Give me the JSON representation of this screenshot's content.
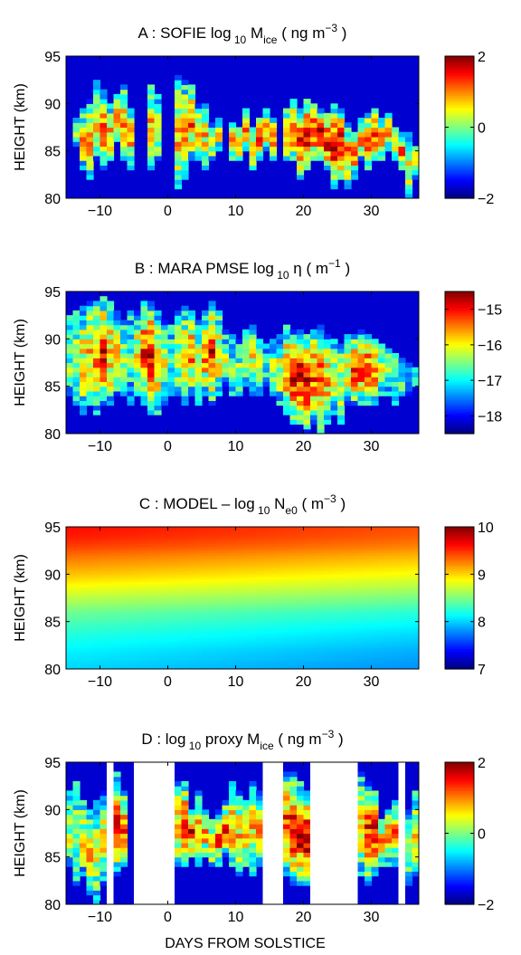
{
  "figure": {
    "xlabel": "DAYS FROM SOLSTICE"
  },
  "chart_data": [
    {
      "type": "heatmap",
      "panel_id": "A",
      "title": "A : SOFIE log 10 M ice ( ng m −3 )",
      "title_parts": {
        "prefix": "A : SOFIE log",
        "sub1": "10",
        "mid": " M",
        "sub2": "ice",
        "unit_open": "   ( ng m",
        "sup": "−3",
        "unit_close": " )"
      },
      "ylabel": "HEIGHT (km)",
      "xlim": [
        -15,
        37
      ],
      "ylim": [
        80,
        95
      ],
      "xticks": [
        -10,
        0,
        10,
        20,
        30
      ],
      "xtick_labels": [
        "−10",
        "0",
        "10",
        "20",
        "30"
      ],
      "yticks": [
        80,
        85,
        90,
        95
      ],
      "ytick_labels": [
        "80",
        "85",
        "90",
        "95"
      ],
      "clim": [
        -2,
        2
      ],
      "cbar_ticks": [
        2,
        0,
        -2
      ],
      "cbar_tick_labels": [
        "2",
        "0",
        "−2"
      ],
      "nan_color": "",
      "columns": [
        {
          "day": -14,
          "base": 85.5,
          "top": 88.5,
          "peak": 0.5
        },
        {
          "day": -13,
          "base": 83,
          "top": 89.5,
          "peak": 0.6
        },
        {
          "day": -12,
          "base": 82,
          "top": 90.5,
          "peak": 0.9
        },
        {
          "day": -11,
          "base": 84,
          "top": 92.5,
          "peak": 0.8
        },
        {
          "day": -10,
          "base": 83,
          "top": 91.5,
          "peak": 1.0
        },
        {
          "day": -9,
          "base": 84,
          "top": 90,
          "peak": 0.9
        },
        {
          "day": -8,
          "base": 86,
          "top": 91,
          "peak": 0.7
        },
        {
          "day": -7,
          "base": 84,
          "top": 92,
          "peak": 0.8
        },
        {
          "day": -6,
          "base": 83,
          "top": 89.5,
          "peak": 0.8
        },
        {
          "day": -3,
          "base": 83,
          "top": 92,
          "peak": 0.8
        },
        {
          "day": -2,
          "base": 84,
          "top": 91,
          "peak": 0.7
        },
        {
          "day": 1,
          "base": 81,
          "top": 93,
          "peak": 0.8
        },
        {
          "day": 2,
          "base": 82,
          "top": 92.5,
          "peak": 1.0
        },
        {
          "day": 3,
          "base": 84,
          "top": 92,
          "peak": 1.0
        },
        {
          "day": 4,
          "base": 84,
          "top": 90,
          "peak": 0.9
        },
        {
          "day": 5,
          "base": 83,
          "top": 90,
          "peak": 0.6
        },
        {
          "day": 6,
          "base": 84,
          "top": 88,
          "peak": 0.5
        },
        {
          "day": 7,
          "base": 85,
          "top": 88.5,
          "peak": 0.4
        },
        {
          "day": 9,
          "base": 84,
          "top": 88,
          "peak": 0.6
        },
        {
          "day": 10,
          "base": 84,
          "top": 87.5,
          "peak": 1.0
        },
        {
          "day": 11,
          "base": 85,
          "top": 89.5,
          "peak": 1.1
        },
        {
          "day": 12,
          "base": 83,
          "top": 87.5,
          "peak": 1.2
        },
        {
          "day": 13,
          "base": 84,
          "top": 88.5,
          "peak": 1.2
        },
        {
          "day": 14,
          "base": 85,
          "top": 89.5,
          "peak": 1.1
        },
        {
          "day": 15,
          "base": 84,
          "top": 88.5,
          "peak": 0.9
        },
        {
          "day": 17,
          "base": 84,
          "top": 89.5,
          "peak": 1.0
        },
        {
          "day": 18,
          "base": 84,
          "top": 90.5,
          "peak": 1.1
        },
        {
          "day": 19,
          "base": 82,
          "top": 89.5,
          "peak": 1.3
        },
        {
          "day": 20,
          "base": 83,
          "top": 90.5,
          "peak": 1.5
        },
        {
          "day": 21,
          "base": 84,
          "top": 90,
          "peak": 1.6
        },
        {
          "day": 22,
          "base": 84,
          "top": 89.5,
          "peak": 1.7
        },
        {
          "day": 23,
          "base": 83,
          "top": 89,
          "peak": 1.7
        },
        {
          "day": 24,
          "base": 81,
          "top": 90,
          "peak": 1.8
        },
        {
          "day": 25,
          "base": 82,
          "top": 89.5,
          "peak": 1.6
        },
        {
          "day": 26,
          "base": 81,
          "top": 88,
          "peak": 1.0
        },
        {
          "day": 27,
          "base": 82,
          "top": 87,
          "peak": 0.9
        },
        {
          "day": 28,
          "base": 84,
          "top": 88.5,
          "peak": 1.0
        },
        {
          "day": 29,
          "base": 83,
          "top": 89,
          "peak": 1.2
        },
        {
          "day": 30,
          "base": 84,
          "top": 89.5,
          "peak": 1.3
        },
        {
          "day": 31,
          "base": 84,
          "top": 88.5,
          "peak": 1.3
        },
        {
          "day": 32,
          "base": 85,
          "top": 89,
          "peak": 1.0
        },
        {
          "day": 33,
          "base": 84,
          "top": 87.5,
          "peak": 0.9
        },
        {
          "day": 34,
          "base": 83,
          "top": 87,
          "peak": 0.9
        },
        {
          "day": 35,
          "base": 80,
          "top": 87,
          "peak": 0.6
        },
        {
          "day": 36,
          "base": 82,
          "top": 85.5,
          "peak": 0.5
        }
      ]
    },
    {
      "type": "heatmap",
      "panel_id": "B",
      "title": "B : MARA PMSE log 10 η ( m −1 )",
      "title_parts": {
        "prefix": "B : MARA PMSE log",
        "sub1": "10",
        "mid": " η",
        "sub2": "",
        "unit_open": "   ( m",
        "sup": "−1",
        "unit_close": " )"
      },
      "ylabel": "HEIGHT (km)",
      "xlim": [
        -15,
        37
      ],
      "ylim": [
        80,
        95
      ],
      "xticks": [
        -10,
        0,
        10,
        20,
        30
      ],
      "xtick_labels": [
        "−10",
        "0",
        "10",
        "20",
        "30"
      ],
      "yticks": [
        80,
        85,
        90,
        95
      ],
      "ytick_labels": [
        "80",
        "85",
        "90",
        "95"
      ],
      "clim": [
        -18.5,
        -14.5
      ],
      "cbar_ticks": [
        -15,
        -16,
        -17,
        -18
      ],
      "cbar_tick_labels": [
        "−15",
        "−16",
        "−17",
        "−18"
      ],
      "nan_color": "",
      "columns": [
        {
          "day": -15,
          "base": 84,
          "top": 92.5,
          "peak": -16.5
        },
        {
          "day": -14,
          "base": 83,
          "top": 93,
          "peak": -16.2
        },
        {
          "day": -13,
          "base": 82,
          "top": 93.5,
          "peak": -16.0
        },
        {
          "day": -12,
          "base": 83,
          "top": 94,
          "peak": -15.8
        },
        {
          "day": -11,
          "base": 82,
          "top": 94,
          "peak": -15.4
        },
        {
          "day": -10,
          "base": 83,
          "top": 94.5,
          "peak": -15.0
        },
        {
          "day": -9,
          "base": 83,
          "top": 94,
          "peak": -15.6
        },
        {
          "day": -8,
          "base": 84,
          "top": 93,
          "peak": -16.0
        },
        {
          "day": -7,
          "base": 84,
          "top": 92,
          "peak": -16.5
        },
        {
          "day": -6,
          "base": 83,
          "top": 93,
          "peak": -16.8
        },
        {
          "day": -5,
          "base": 84,
          "top": 93,
          "peak": -16.0
        },
        {
          "day": -4,
          "base": 83,
          "top": 94,
          "peak": -15.2
        },
        {
          "day": -3,
          "base": 82,
          "top": 94,
          "peak": -14.8
        },
        {
          "day": -2,
          "base": 82,
          "top": 93,
          "peak": -15.5
        },
        {
          "day": -1,
          "base": 83,
          "top": 92,
          "peak": -16.2
        },
        {
          "day": 0,
          "base": 84,
          "top": 91.5,
          "peak": -16.5
        },
        {
          "day": 1,
          "base": 84,
          "top": 93,
          "peak": -16.2
        },
        {
          "day": 2,
          "base": 83,
          "top": 93.5,
          "peak": -15.8
        },
        {
          "day": 3,
          "base": 84,
          "top": 93,
          "peak": -15.6
        },
        {
          "day": 4,
          "base": 83,
          "top": 92,
          "peak": -16.0
        },
        {
          "day": 5,
          "base": 84,
          "top": 93,
          "peak": -15.5
        },
        {
          "day": 6,
          "base": 83,
          "top": 94,
          "peak": -15.0
        },
        {
          "day": 7,
          "base": 84,
          "top": 93,
          "peak": -15.8
        },
        {
          "day": 8,
          "base": 85,
          "top": 91,
          "peak": -16.5
        },
        {
          "day": 9,
          "base": 84,
          "top": 90.5,
          "peak": -16.8
        },
        {
          "day": 10,
          "base": 84,
          "top": 90,
          "peak": -16.5
        },
        {
          "day": 11,
          "base": 85,
          "top": 91,
          "peak": -16.3
        },
        {
          "day": 12,
          "base": 84,
          "top": 91.5,
          "peak": -16.0
        },
        {
          "day": 13,
          "base": 84,
          "top": 90,
          "peak": -16.6
        },
        {
          "day": 14,
          "base": 85,
          "top": 89.5,
          "peak": -16.8
        },
        {
          "day": 15,
          "base": 84,
          "top": 90,
          "peak": -16.5
        },
        {
          "day": 16,
          "base": 83,
          "top": 90.5,
          "peak": -16.2
        },
        {
          "day": 17,
          "base": 82,
          "top": 91.5,
          "peak": -15.5
        },
        {
          "day": 18,
          "base": 81,
          "top": 91,
          "peak": -15.0
        },
        {
          "day": 19,
          "base": 81,
          "top": 91,
          "peak": -14.9
        },
        {
          "day": 20,
          "base": 80,
          "top": 90.5,
          "peak": -15.0
        },
        {
          "day": 21,
          "base": 81,
          "top": 91,
          "peak": -15.2
        },
        {
          "day": 22,
          "base": 80,
          "top": 91.5,
          "peak": -15.3
        },
        {
          "day": 23,
          "base": 81,
          "top": 90.5,
          "peak": -15.6
        },
        {
          "day": 24,
          "base": 82,
          "top": 90,
          "peak": -16.0
        },
        {
          "day": 25,
          "base": 81,
          "top": 89.5,
          "peak": -16.3
        },
        {
          "day": 26,
          "base": 83,
          "top": 90.5,
          "peak": -16.0
        },
        {
          "day": 27,
          "base": 83,
          "top": 90.5,
          "peak": -15.3
        },
        {
          "day": 28,
          "base": 83,
          "top": 91,
          "peak": -15.0
        },
        {
          "day": 29,
          "base": 83,
          "top": 90.5,
          "peak": -15.2
        },
        {
          "day": 30,
          "base": 83,
          "top": 90,
          "peak": -15.5
        },
        {
          "day": 31,
          "base": 84,
          "top": 89.5,
          "peak": -16.0
        },
        {
          "day": 32,
          "base": 84,
          "top": 89,
          "peak": -16.4
        },
        {
          "day": 33,
          "base": 83,
          "top": 88.5,
          "peak": -16.6
        },
        {
          "day": 34,
          "base": 84,
          "top": 88,
          "peak": -16.9
        },
        {
          "day": 35,
          "base": 84,
          "top": 87.5,
          "peak": -17.0
        },
        {
          "day": 36,
          "base": 85,
          "top": 87,
          "peak": -17.2
        }
      ]
    },
    {
      "type": "heatmap",
      "panel_id": "C",
      "title": "C : MODEL − log 10 N e0 ( m −3 )",
      "title_parts": {
        "prefix": "C : MODEL – log",
        "sub1": "10",
        "mid": " N",
        "sub2": "e0",
        "unit_open": "  ( m",
        "sup": "−3",
        "unit_close": " )"
      },
      "ylabel": "HEIGHT (km)",
      "xlim": [
        -15,
        37
      ],
      "ylim": [
        80,
        95
      ],
      "xticks": [
        -10,
        0,
        10,
        20,
        30
      ],
      "xtick_labels": [
        "−10",
        "0",
        "10",
        "20",
        "30"
      ],
      "yticks": [
        80,
        85,
        90,
        95
      ],
      "ytick_labels": [
        "80",
        "85",
        "90",
        "95"
      ],
      "clim": [
        7,
        10
      ],
      "cbar_ticks": [
        10,
        9,
        8,
        7
      ],
      "cbar_tick_labels": [
        "10",
        "9",
        "8",
        "7"
      ],
      "profile": [
        {
          "h": 80,
          "v": 8.0
        },
        {
          "h": 82,
          "v": 8.1
        },
        {
          "h": 84,
          "v": 8.25
        },
        {
          "h": 86,
          "v": 8.45
        },
        {
          "h": 88,
          "v": 8.75
        },
        {
          "h": 90,
          "v": 9.05
        },
        {
          "h": 92,
          "v": 9.3
        },
        {
          "h": 93,
          "v": 9.45
        },
        {
          "h": 94,
          "v": 9.55
        },
        {
          "h": 95,
          "v": 9.6
        }
      ],
      "slow_trend_per_day": -0.004
    },
    {
      "type": "heatmap",
      "panel_id": "D",
      "title": "D : log 10 proxy M ice ( ng m −3 )",
      "title_parts": {
        "prefix": "D : log",
        "sub1": "10",
        "mid": " proxy M",
        "sub2": "ice",
        "unit_open": "   ( ng m",
        "sup": "−3",
        "unit_close": " )"
      },
      "ylabel": "HEIGHT (km)",
      "xlim": [
        -15,
        37
      ],
      "ylim": [
        80,
        95
      ],
      "xticks": [
        -10,
        0,
        10,
        20,
        30
      ],
      "xtick_labels": [
        "−10",
        "0",
        "10",
        "20",
        "30"
      ],
      "yticks": [
        80,
        85,
        90,
        95
      ],
      "ytick_labels": [
        "80",
        "85",
        "90",
        "95"
      ],
      "clim": [
        -2,
        2
      ],
      "cbar_ticks": [
        2,
        0,
        -2
      ],
      "cbar_tick_labels": [
        "2",
        "0",
        "−2"
      ],
      "gaps": [
        [
          -9,
          -8
        ],
        [
          -5,
          1
        ],
        [
          14,
          17
        ],
        [
          21,
          28
        ],
        [
          34,
          35
        ]
      ],
      "columns": [
        {
          "day": -15,
          "base": 84,
          "top": 92,
          "peak": 0.3
        },
        {
          "day": -14,
          "base": 82,
          "top": 93,
          "peak": 0.2
        },
        {
          "day": -13,
          "base": 83,
          "top": 91,
          "peak": 0.4
        },
        {
          "day": -12,
          "base": 81,
          "top": 90,
          "peak": 0.7
        },
        {
          "day": -11,
          "base": 80,
          "top": 91,
          "peak": 0.5
        },
        {
          "day": -10,
          "base": 82,
          "top": 92,
          "peak": 0.4
        },
        {
          "day": -8,
          "base": 83,
          "top": 94,
          "peak": 1.3
        },
        {
          "day": -7,
          "base": 84,
          "top": 92,
          "peak": 1.1
        },
        {
          "day": 1,
          "base": 84,
          "top": 93,
          "peak": 0.9
        },
        {
          "day": 2,
          "base": 84,
          "top": 93,
          "peak": 1.6
        },
        {
          "day": 3,
          "base": 85,
          "top": 90,
          "peak": 1.4
        },
        {
          "day": 4,
          "base": 84,
          "top": 92,
          "peak": 0.9
        },
        {
          "day": 5,
          "base": 85,
          "top": 90,
          "peak": 0.8
        },
        {
          "day": 6,
          "base": 84,
          "top": 89,
          "peak": 0.9
        },
        {
          "day": 7,
          "base": 84,
          "top": 90,
          "peak": 1.2
        },
        {
          "day": 8,
          "base": 85,
          "top": 91,
          "peak": 1.1
        },
        {
          "day": 9,
          "base": 84,
          "top": 93,
          "peak": 0.9
        },
        {
          "day": 10,
          "base": 83,
          "top": 92,
          "peak": 0.7
        },
        {
          "day": 11,
          "base": 84,
          "top": 91,
          "peak": 0.8
        },
        {
          "day": 12,
          "base": 83,
          "top": 93,
          "peak": 0.7
        },
        {
          "day": 13,
          "base": 84,
          "top": 92,
          "peak": 0.6
        },
        {
          "day": 17,
          "base": 83,
          "top": 94,
          "peak": 1.2
        },
        {
          "day": 18,
          "base": 82,
          "top": 94,
          "peak": 1.5
        },
        {
          "day": 19,
          "base": 82,
          "top": 93,
          "peak": 1.7
        },
        {
          "day": 20,
          "base": 82,
          "top": 92,
          "peak": 1.6
        },
        {
          "day": 28,
          "base": 83,
          "top": 94,
          "peak": 0.9
        },
        {
          "day": 29,
          "base": 82,
          "top": 93,
          "peak": 1.3
        },
        {
          "day": 30,
          "base": 83,
          "top": 92,
          "peak": 1.5
        },
        {
          "day": 31,
          "base": 84,
          "top": 89,
          "peak": 1.2
        },
        {
          "day": 32,
          "base": 84,
          "top": 90,
          "peak": 1.0
        },
        {
          "day": 33,
          "base": 84,
          "top": 91,
          "peak": 0.9
        },
        {
          "day": 35,
          "base": 82,
          "top": 90,
          "peak": 0.5
        },
        {
          "day": 36,
          "base": 83,
          "top": 92,
          "peak": 0.3
        }
      ]
    }
  ]
}
